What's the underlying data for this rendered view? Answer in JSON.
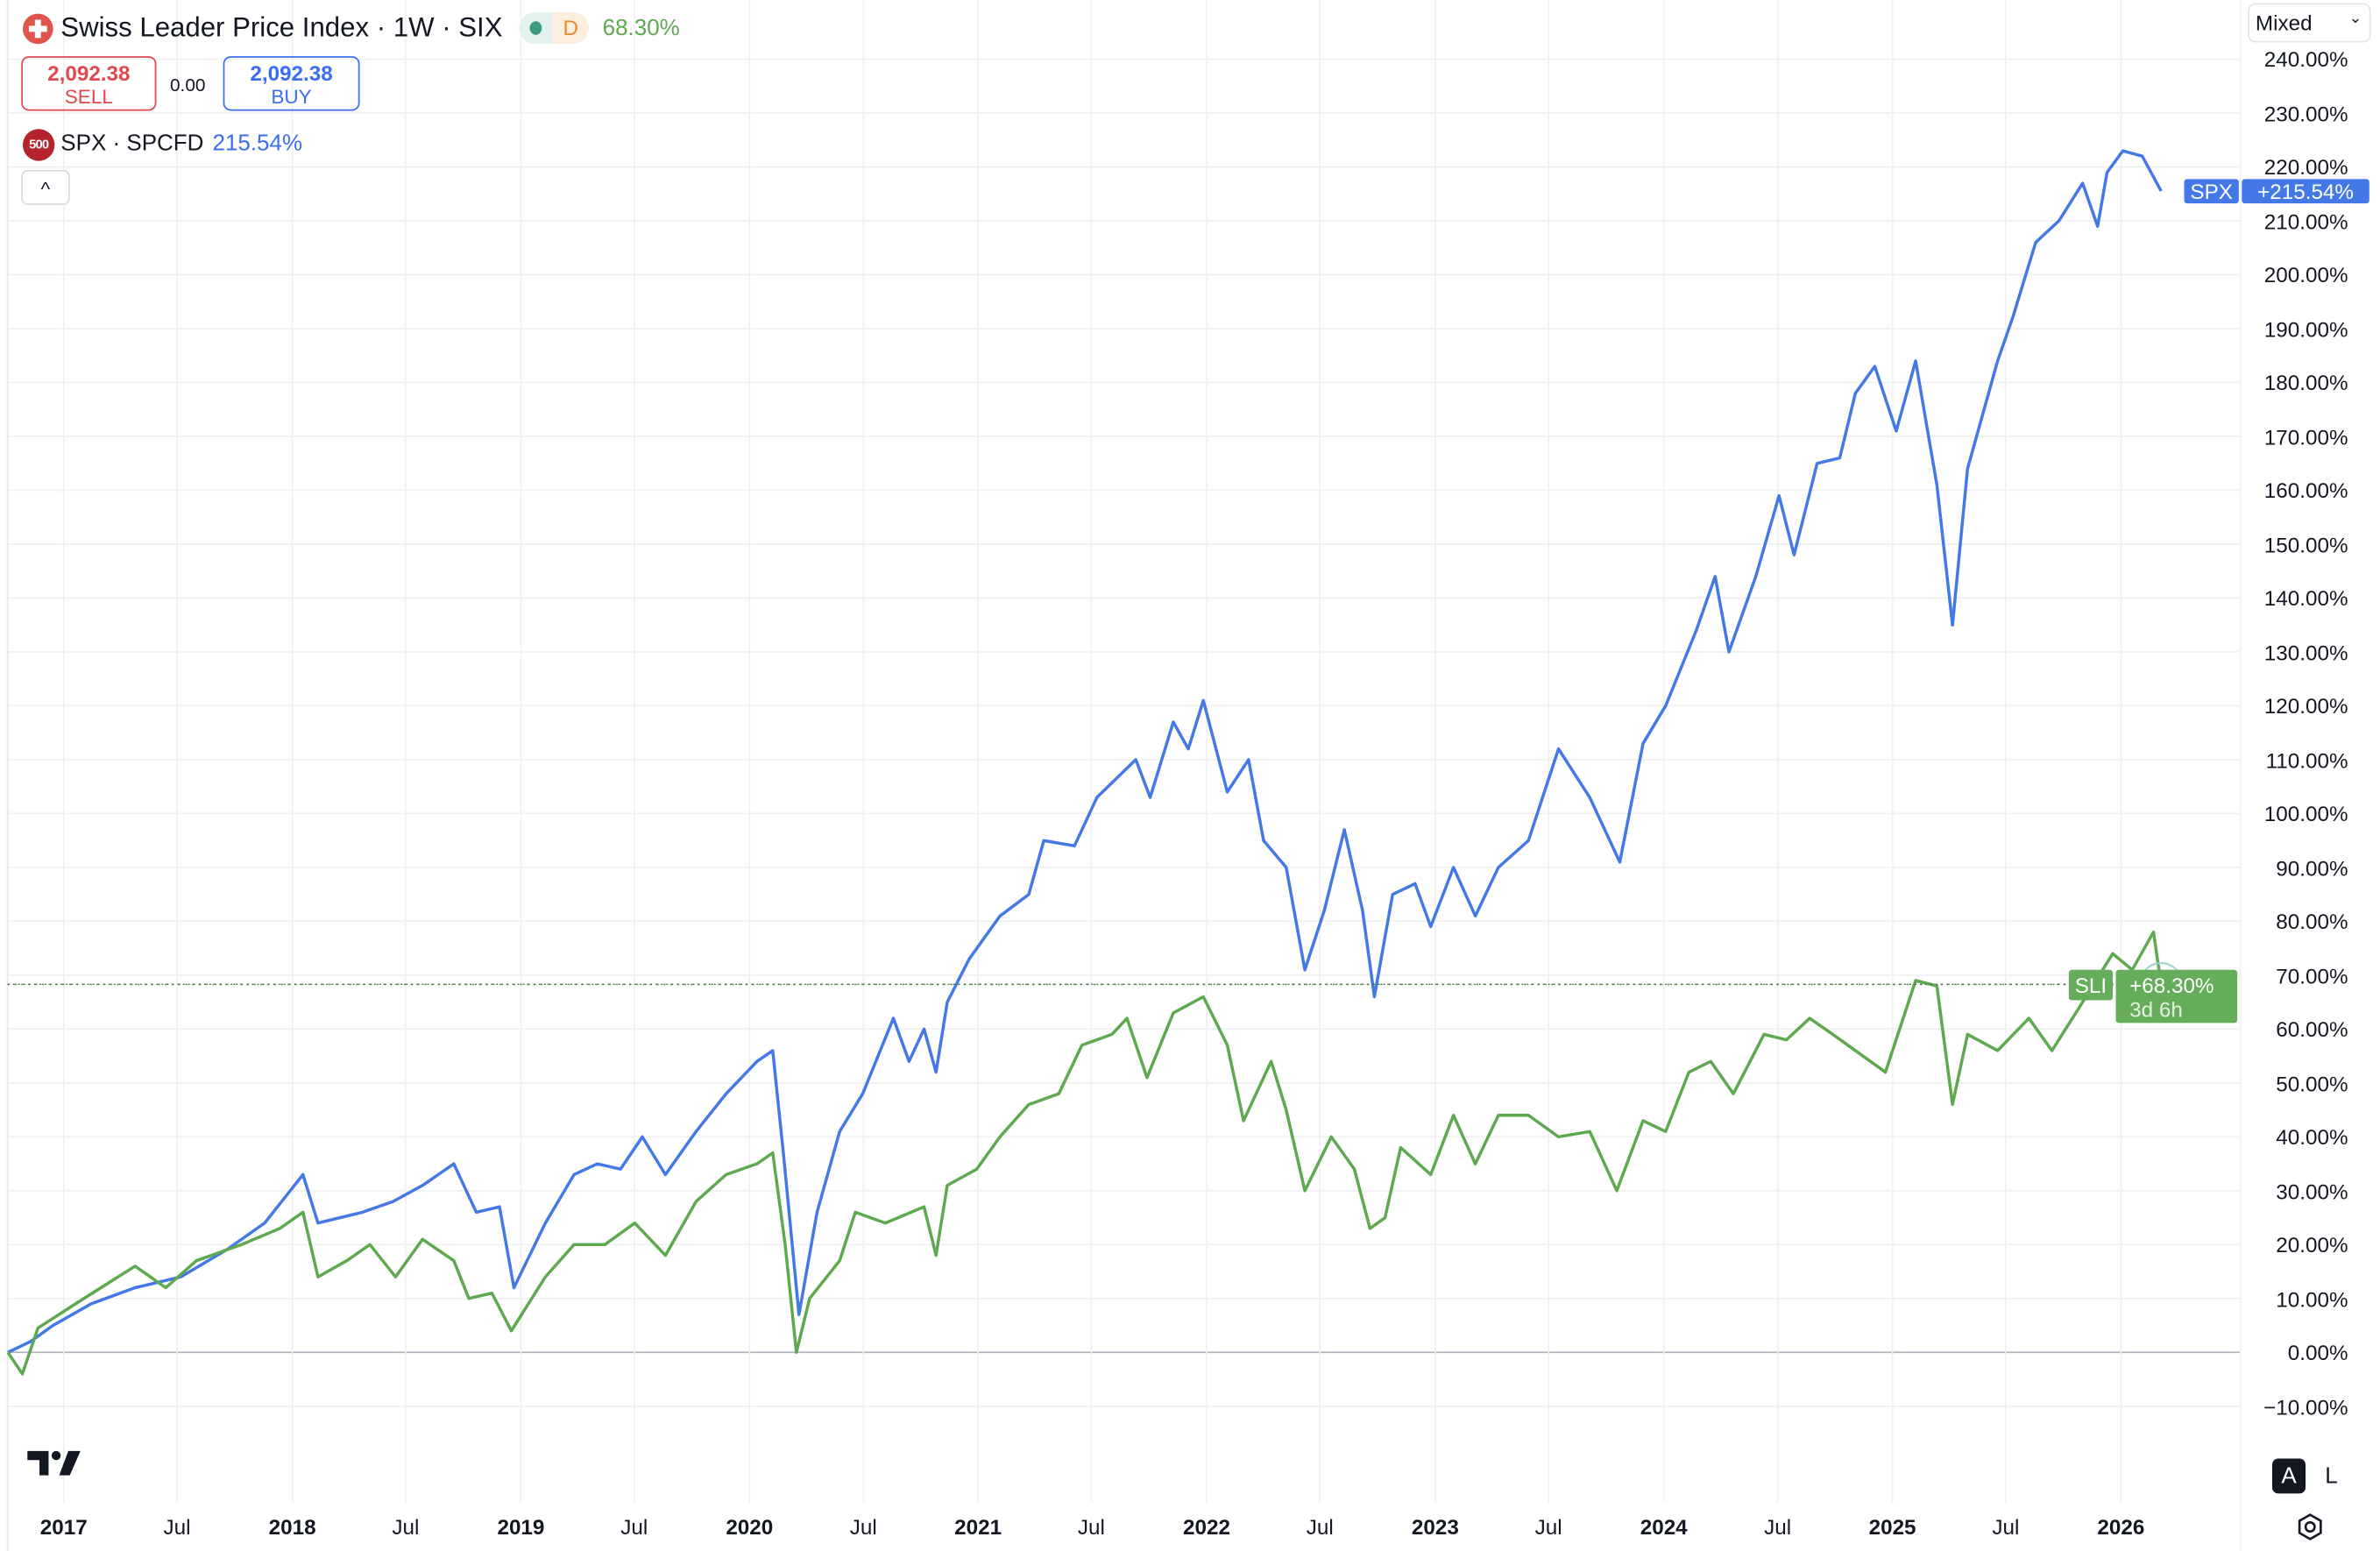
{
  "header": {
    "title": "Swiss Leader Price Index · 1W · SIX",
    "status_letter": "D",
    "change_pct": "68.30%",
    "sell_price": "2,092.38",
    "sell_label": "SELL",
    "spread": "0.00",
    "buy_price": "2,092.38",
    "buy_label": "BUY",
    "collapse_icon": "^"
  },
  "compare": {
    "logo_text": "500",
    "label": "SPX · SPCFD",
    "change_pct": "215.54%"
  },
  "scale_mode": "Mixed",
  "bottom": {
    "auto_label": "A",
    "log_label": "L"
  },
  "tags": {
    "spx_name": "SPX",
    "spx_value": "+215.54%",
    "sli_name": "SLI",
    "sli_value": "+68.30%",
    "sli_countdown": "3d 6h"
  },
  "colors": {
    "spx": "#4378e6",
    "sli": "#5ea850",
    "spx_tag": "#4378e6",
    "sli_tag": "#66ad5b"
  },
  "chart_data": {
    "type": "line",
    "yunit": "%",
    "ylim": [
      -13,
      241
    ],
    "y_ticks": [
      "240.00%",
      "230.00%",
      "220.00%",
      "210.00%",
      "200.00%",
      "190.00%",
      "180.00%",
      "170.00%",
      "160.00%",
      "150.00%",
      "140.00%",
      "130.00%",
      "120.00%",
      "110.00%",
      "100.00%",
      "90.00%",
      "80.00%",
      "70.00%",
      "60.00%",
      "50.00%",
      "40.00%",
      "30.00%",
      "20.00%",
      "10.00%",
      "0.00%",
      "−10.00%"
    ],
    "x_ticks": [
      {
        "label": "2017",
        "date": "2017-01-01",
        "year": true
      },
      {
        "label": "Jul",
        "date": "2017-07-01"
      },
      {
        "label": "2018",
        "date": "2018-01-01",
        "year": true
      },
      {
        "label": "Jul",
        "date": "2018-07-01"
      },
      {
        "label": "2019",
        "date": "2019-01-01",
        "year": true
      },
      {
        "label": "Jul",
        "date": "2019-07-01"
      },
      {
        "label": "2020",
        "date": "2020-01-01",
        "year": true
      },
      {
        "label": "Jul",
        "date": "2020-07-01"
      },
      {
        "label": "2021",
        "date": "2021-01-01",
        "year": true
      },
      {
        "label": "Jul",
        "date": "2021-07-01"
      },
      {
        "label": "2022",
        "date": "2022-01-01",
        "year": true
      },
      {
        "label": "Jul",
        "date": "2022-07-01"
      },
      {
        "label": "2023",
        "date": "2023-01-01",
        "year": true
      },
      {
        "label": "Jul",
        "date": "2023-07-01"
      },
      {
        "label": "2024",
        "date": "2024-01-01",
        "year": true
      },
      {
        "label": "Jul",
        "date": "2024-07-01"
      },
      {
        "label": "2025",
        "date": "2025-01-01",
        "year": true
      },
      {
        "label": "Jul",
        "date": "2025-07-01"
      },
      {
        "label": "2026",
        "date": "2026-01-01",
        "year": true
      }
    ],
    "grid": true,
    "series": [
      {
        "name": "SPX",
        "points": [
          [
            "2016-10-03",
            0
          ],
          [
            "2016-11-08",
            2
          ],
          [
            "2016-12-14",
            5
          ],
          [
            "2017-02-14",
            9
          ],
          [
            "2017-04-25",
            12
          ],
          [
            "2017-07-07",
            14
          ],
          [
            "2017-09-18",
            19
          ],
          [
            "2017-11-18",
            24
          ],
          [
            "2018-01-18",
            33
          ],
          [
            "2018-02-11",
            24
          ],
          [
            "2018-04-23",
            26
          ],
          [
            "2018-06-11",
            28
          ],
          [
            "2018-07-28",
            31
          ],
          [
            "2018-09-16",
            35
          ],
          [
            "2018-10-22",
            26
          ],
          [
            "2018-11-28",
            27
          ],
          [
            "2018-12-21",
            12
          ],
          [
            "2019-02-09",
            24
          ],
          [
            "2019-03-27",
            33
          ],
          [
            "2019-05-03",
            35
          ],
          [
            "2019-06-09",
            34
          ],
          [
            "2019-07-14",
            40
          ],
          [
            "2019-08-20",
            33
          ],
          [
            "2019-10-08",
            41
          ],
          [
            "2019-11-25",
            48
          ],
          [
            "2020-01-13",
            54
          ],
          [
            "2020-02-07",
            56
          ],
          [
            "2020-02-24",
            37
          ],
          [
            "2020-03-20",
            7
          ],
          [
            "2020-04-18",
            26
          ],
          [
            "2020-05-24",
            41
          ],
          [
            "2020-06-30",
            48
          ],
          [
            "2020-08-18",
            62
          ],
          [
            "2020-09-12",
            54
          ],
          [
            "2020-10-06",
            60
          ],
          [
            "2020-10-25",
            52
          ],
          [
            "2020-11-12",
            65
          ],
          [
            "2020-12-17",
            73
          ],
          [
            "2021-02-05",
            81
          ],
          [
            "2021-03-23",
            85
          ],
          [
            "2021-04-16",
            95
          ],
          [
            "2021-06-04",
            94
          ],
          [
            "2021-07-10",
            103
          ],
          [
            "2021-09-10",
            110
          ],
          [
            "2021-10-03",
            103
          ],
          [
            "2021-11-09",
            117
          ],
          [
            "2021-12-03",
            112
          ],
          [
            "2021-12-27",
            121
          ],
          [
            "2022-02-03",
            104
          ],
          [
            "2022-03-09",
            110
          ],
          [
            "2022-04-02",
            95
          ],
          [
            "2022-05-08",
            90
          ],
          [
            "2022-06-07",
            71
          ],
          [
            "2022-07-08",
            82
          ],
          [
            "2022-08-09",
            97
          ],
          [
            "2022-09-07",
            82
          ],
          [
            "2022-09-26",
            66
          ],
          [
            "2022-10-25",
            85
          ],
          [
            "2022-11-30",
            87
          ],
          [
            "2022-12-25",
            79
          ],
          [
            "2023-01-30",
            90
          ],
          [
            "2023-03-06",
            81
          ],
          [
            "2023-04-12",
            90
          ],
          [
            "2023-05-30",
            95
          ],
          [
            "2023-07-17",
            112
          ],
          [
            "2023-09-05",
            103
          ],
          [
            "2023-10-23",
            91
          ],
          [
            "2023-11-29",
            113
          ],
          [
            "2024-01-04",
            120
          ],
          [
            "2024-02-22",
            134
          ],
          [
            "2024-03-23",
            144
          ],
          [
            "2024-04-14",
            130
          ],
          [
            "2024-05-27",
            144
          ],
          [
            "2024-07-03",
            159
          ],
          [
            "2024-07-27",
            148
          ],
          [
            "2024-09-02",
            165
          ],
          [
            "2024-10-08",
            166
          ],
          [
            "2024-11-02",
            178
          ],
          [
            "2024-12-03",
            183
          ],
          [
            "2025-01-07",
            171
          ],
          [
            "2025-02-07",
            184
          ],
          [
            "2025-03-13",
            161
          ],
          [
            "2025-04-07",
            135
          ],
          [
            "2025-05-01",
            164
          ],
          [
            "2025-06-18",
            184
          ],
          [
            "2025-07-12",
            192
          ],
          [
            "2025-08-18",
            206
          ],
          [
            "2025-09-24",
            210
          ],
          [
            "2025-11-01",
            217
          ],
          [
            "2025-11-25",
            209
          ],
          [
            "2025-12-10",
            219
          ],
          [
            "2026-01-04",
            223
          ],
          [
            "2026-02-04",
            222
          ],
          [
            "2026-03-06",
            215.54
          ]
        ]
      },
      {
        "name": "SLI",
        "points": [
          [
            "2016-10-03",
            0
          ],
          [
            "2016-10-26",
            -4
          ],
          [
            "2016-11-20",
            4.5
          ],
          [
            "2017-01-20",
            9
          ],
          [
            "2017-04-25",
            16
          ],
          [
            "2017-06-13",
            12
          ],
          [
            "2017-08-01",
            17
          ],
          [
            "2017-10-12",
            20
          ],
          [
            "2017-12-12",
            23
          ],
          [
            "2018-01-18",
            26
          ],
          [
            "2018-02-11",
            14
          ],
          [
            "2018-03-29",
            17
          ],
          [
            "2018-05-05",
            20
          ],
          [
            "2018-06-15",
            14
          ],
          [
            "2018-07-28",
            21
          ],
          [
            "2018-09-16",
            17
          ],
          [
            "2018-10-10",
            10
          ],
          [
            "2018-11-16",
            11
          ],
          [
            "2018-12-17",
            4
          ],
          [
            "2019-02-09",
            14
          ],
          [
            "2019-03-27",
            20
          ],
          [
            "2019-05-15",
            20
          ],
          [
            "2019-07-02",
            24
          ],
          [
            "2019-08-20",
            18
          ],
          [
            "2019-10-08",
            28
          ],
          [
            "2019-11-25",
            33
          ],
          [
            "2020-01-13",
            35
          ],
          [
            "2020-02-07",
            37
          ],
          [
            "2020-02-27",
            20
          ],
          [
            "2020-03-16",
            0
          ],
          [
            "2020-04-06",
            10
          ],
          [
            "2020-05-24",
            17
          ],
          [
            "2020-06-18",
            26
          ],
          [
            "2020-08-05",
            24
          ],
          [
            "2020-10-06",
            27
          ],
          [
            "2020-10-25",
            18
          ],
          [
            "2020-11-12",
            31
          ],
          [
            "2020-12-29",
            34
          ],
          [
            "2021-02-05",
            40
          ],
          [
            "2021-03-23",
            46
          ],
          [
            "2021-05-10",
            48
          ],
          [
            "2021-06-16",
            57
          ],
          [
            "2021-08-03",
            59
          ],
          [
            "2021-08-27",
            62
          ],
          [
            "2021-09-28",
            51
          ],
          [
            "2021-11-09",
            63
          ],
          [
            "2021-12-27",
            66
          ],
          [
            "2022-02-03",
            57
          ],
          [
            "2022-03-01",
            43
          ],
          [
            "2022-04-14",
            54
          ],
          [
            "2022-05-08",
            45
          ],
          [
            "2022-06-07",
            30
          ],
          [
            "2022-07-19",
            40
          ],
          [
            "2022-08-25",
            34
          ],
          [
            "2022-09-19",
            23
          ],
          [
            "2022-10-13",
            25
          ],
          [
            "2022-11-07",
            38
          ],
          [
            "2022-12-25",
            33
          ],
          [
            "2023-01-30",
            44
          ],
          [
            "2023-03-06",
            35
          ],
          [
            "2023-04-12",
            44
          ],
          [
            "2023-05-30",
            44
          ],
          [
            "2023-07-17",
            40
          ],
          [
            "2023-09-05",
            41
          ],
          [
            "2023-10-18",
            30
          ],
          [
            "2023-11-29",
            43
          ],
          [
            "2024-01-04",
            41
          ],
          [
            "2024-02-10",
            52
          ],
          [
            "2024-03-16",
            54
          ],
          [
            "2024-04-21",
            48
          ],
          [
            "2024-06-09",
            59
          ],
          [
            "2024-07-15",
            58
          ],
          [
            "2024-08-21",
            62
          ],
          [
            "2024-09-27",
            59
          ],
          [
            "2024-11-02",
            56
          ],
          [
            "2024-12-20",
            52
          ],
          [
            "2025-02-07",
            69
          ],
          [
            "2025-03-13",
            68
          ],
          [
            "2025-04-07",
            46
          ],
          [
            "2025-05-01",
            59
          ],
          [
            "2025-06-18",
            56
          ],
          [
            "2025-08-07",
            62
          ],
          [
            "2025-09-13",
            56
          ],
          [
            "2025-11-01",
            65
          ],
          [
            "2025-12-19",
            74
          ],
          [
            "2026-01-19",
            71
          ],
          [
            "2026-02-22",
            78
          ],
          [
            "2026-03-06",
            68.3
          ]
        ]
      }
    ]
  }
}
